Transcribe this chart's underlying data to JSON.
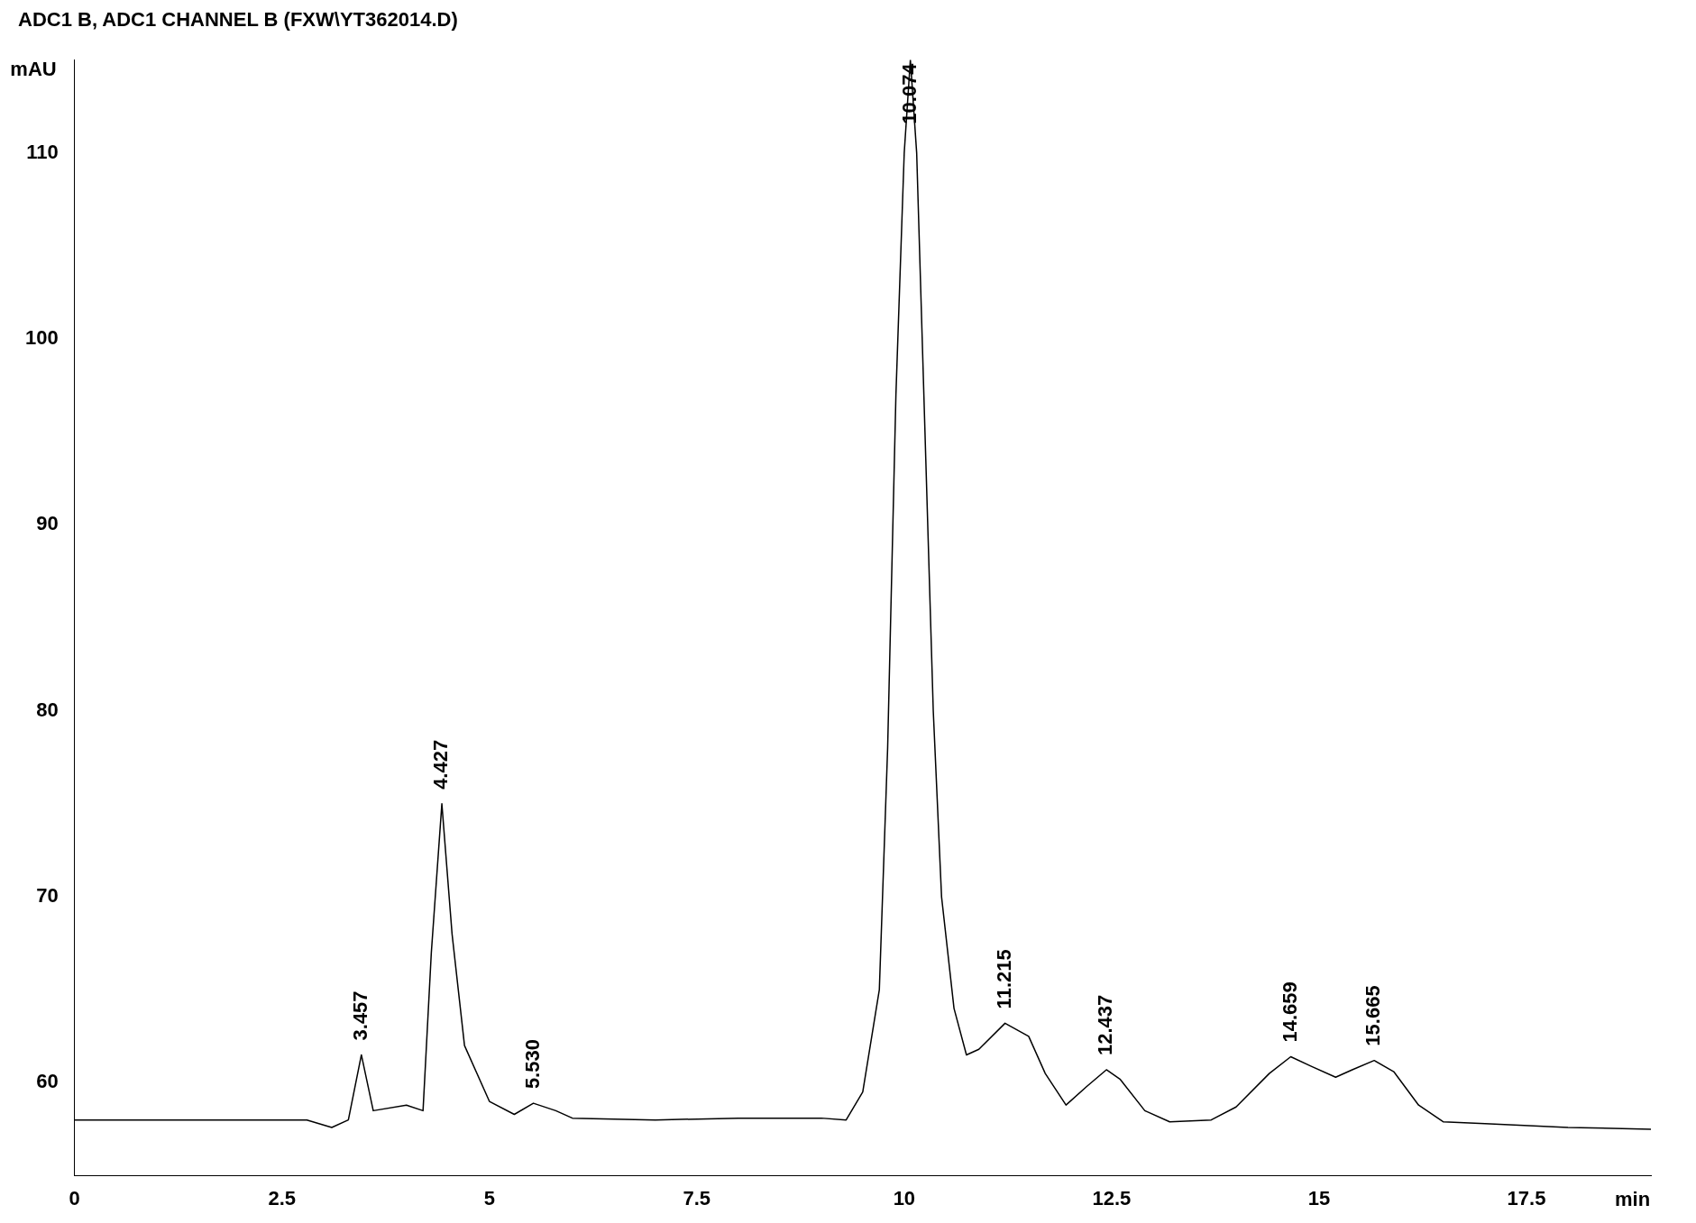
{
  "chart_data": {
    "type": "line",
    "title": "ADC1 B, ADC1 CHANNEL B (FXW\\YT362014.D)",
    "xlabel": "min",
    "ylabel": "mAU",
    "x": [
      0,
      1,
      2,
      2.8,
      3.1,
      3.3,
      3.457,
      3.6,
      4.0,
      4.2,
      4.3,
      4.427,
      4.55,
      4.7,
      5.0,
      5.3,
      5.53,
      5.8,
      6.0,
      7,
      8,
      9,
      9.3,
      9.5,
      9.7,
      9.8,
      9.9,
      10.0,
      10.074,
      10.15,
      10.25,
      10.35,
      10.45,
      10.6,
      10.75,
      10.9,
      11.215,
      11.5,
      11.7,
      11.95,
      12.2,
      12.437,
      12.6,
      12.9,
      13.2,
      13.7,
      14.0,
      14.4,
      14.659,
      14.9,
      15.2,
      15.4,
      15.665,
      15.9,
      16.2,
      16.5,
      17,
      18,
      19
    ],
    "series": [
      {
        "color": "#000000",
        "values": [
          58.0,
          58.0,
          58.0,
          58.0,
          57.6,
          58.0,
          61.5,
          58.5,
          58.8,
          58.5,
          67,
          75,
          68,
          62,
          59.0,
          58.3,
          58.9,
          58.5,
          58.1,
          58,
          58.1,
          58.1,
          58.0,
          59.5,
          65,
          78,
          97,
          110,
          115,
          110,
          95,
          80,
          70,
          64,
          61.5,
          61.8,
          63.2,
          62.5,
          60.5,
          58.8,
          59.8,
          60.7,
          60.2,
          58.5,
          57.9,
          58.0,
          58.7,
          60.5,
          61.4,
          60.9,
          60.3,
          60.7,
          61.2,
          60.6,
          58.8,
          57.9,
          57.8,
          57.6,
          57.5
        ]
      }
    ],
    "xlim": [
      0,
      19
    ],
    "xticks": [
      0,
      2.5,
      5,
      7.5,
      10,
      12.5,
      15,
      17.5
    ],
    "ylim": [
      55,
      115
    ],
    "yticks": [
      60,
      70,
      80,
      90,
      100,
      110
    ],
    "grid": false,
    "legend": false,
    "marker": "none",
    "line_style": "solid",
    "annotations": [
      {
        "text": "3.457",
        "x": 3.457,
        "y": 61.5
      },
      {
        "text": "4.427",
        "x": 4.427,
        "y": 75
      },
      {
        "text": "5.530",
        "x": 5.53,
        "y": 58.9
      },
      {
        "text": "10.074",
        "x": 10.074,
        "y": 115
      },
      {
        "text": "11.215",
        "x": 11.215,
        "y": 63.2
      },
      {
        "text": "12.437",
        "x": 12.437,
        "y": 60.7
      },
      {
        "text": "14.659",
        "x": 14.659,
        "y": 61.4
      },
      {
        "text": "15.665",
        "x": 15.665,
        "y": 61.2
      }
    ]
  }
}
